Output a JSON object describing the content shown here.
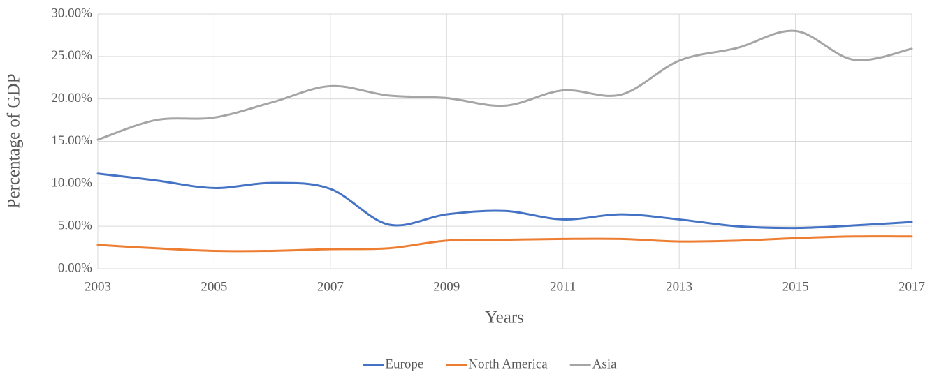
{
  "chart_data": {
    "type": "line",
    "x_label": "Years",
    "y_label": "Percentage of GDP",
    "x": [
      2003,
      2004,
      2005,
      2006,
      2007,
      2008,
      2009,
      2010,
      2011,
      2012,
      2013,
      2014,
      2015,
      2016,
      2017
    ],
    "series": [
      {
        "name": "Europe",
        "color": "#4472c4",
        "values": [
          11.2,
          10.4,
          9.5,
          10.1,
          9.4,
          5.2,
          6.4,
          6.8,
          5.8,
          6.4,
          5.8,
          5.0,
          4.8,
          5.1,
          5.5
        ]
      },
      {
        "name": "North America",
        "color": "#ed7d31",
        "values": [
          2.8,
          2.4,
          2.1,
          2.1,
          2.3,
          2.4,
          3.3,
          3.4,
          3.5,
          3.5,
          3.2,
          3.3,
          3.6,
          3.8,
          3.8
        ]
      },
      {
        "name": "Asia",
        "color": "#a5a5a5",
        "values": [
          15.2,
          17.5,
          17.8,
          19.6,
          21.5,
          20.4,
          20.1,
          19.2,
          21.0,
          20.5,
          24.5,
          26.0,
          28.0,
          24.6,
          25.9
        ]
      }
    ],
    "xlim": [
      2003,
      2017
    ],
    "xticks": [
      2003,
      2005,
      2007,
      2009,
      2011,
      2013,
      2015,
      2017
    ],
    "ylim": [
      0,
      30
    ],
    "yticks": [
      {
        "value": 0,
        "label": "0.00%"
      },
      {
        "value": 5,
        "label": "5.00%"
      },
      {
        "value": 10,
        "label": "10.00%"
      },
      {
        "value": 15,
        "label": "15.00%"
      },
      {
        "value": 20,
        "label": "20.00%"
      },
      {
        "value": 25,
        "label": "25.00%"
      },
      {
        "value": 30,
        "label": "30.00%"
      }
    ],
    "grid": true,
    "smooth": true,
    "legend": "bottom"
  }
}
